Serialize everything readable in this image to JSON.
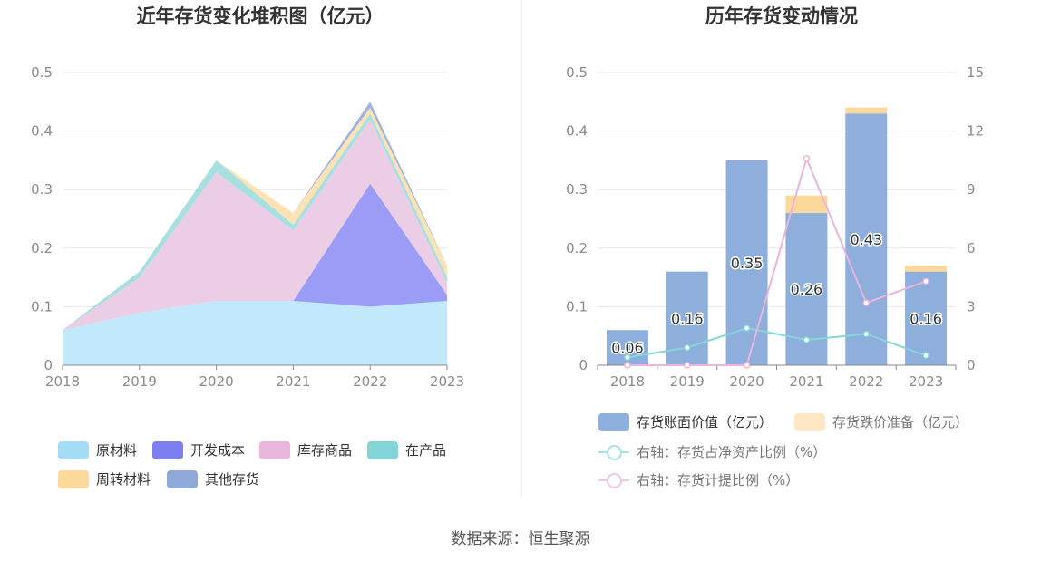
{
  "chart_data": [
    {
      "type": "area",
      "stacked": true,
      "title": "近年存货变化堆积图（亿元）",
      "categories": [
        "2018",
        "2019",
        "2020",
        "2021",
        "2022",
        "2023"
      ],
      "y_ticks": [
        "0",
        "0.1",
        "0.2",
        "0.3",
        "0.4",
        "0.5"
      ],
      "ylim": [
        0,
        0.5
      ],
      "grid": true,
      "legend_position": "bottom",
      "series": [
        {
          "name": "原材料",
          "color": "#c2e8fb",
          "values": [
            0.06,
            0.09,
            0.11,
            0.11,
            0.1,
            0.11
          ]
        },
        {
          "name": "开发成本",
          "color": "#9a9cf5",
          "values": [
            0,
            0,
            0,
            0,
            0.21,
            0.01
          ]
        },
        {
          "name": "库存商品",
          "color": "#eccde6",
          "values": [
            0,
            0.06,
            0.22,
            0.12,
            0.11,
            0.02
          ]
        },
        {
          "name": "在产品",
          "color": "#a6e0e0",
          "values": [
            0,
            0.01,
            0.02,
            0.01,
            0.01,
            0.01
          ]
        },
        {
          "name": "周转材料",
          "color": "#fde2b4",
          "values": [
            0,
            0,
            0,
            0.02,
            0.01,
            0.02
          ]
        },
        {
          "name": "其他存货",
          "color": "#9fb3dd",
          "values": [
            0,
            0,
            0,
            0,
            0.01,
            0
          ]
        }
      ],
      "legend_swatch_colors": [
        "#a5dcf8",
        "#7d7ef0",
        "#e9b7dc",
        "#82d4d6",
        "#fdd89b",
        "#8fa9d9"
      ]
    },
    {
      "type": "bar",
      "stacked": true,
      "title": "历年存货变动情况",
      "categories": [
        "2018",
        "2019",
        "2020",
        "2021",
        "2022",
        "2023"
      ],
      "y_ticks_left": [
        "0",
        "0.1",
        "0.2",
        "0.3",
        "0.4",
        "0.5"
      ],
      "y_ticks_right": [
        "0",
        "3",
        "6",
        "9",
        "12",
        "15"
      ],
      "ylim_left": [
        0,
        0.5
      ],
      "ylim_right": [
        0,
        15
      ],
      "grid": true,
      "legend_position": "bottom",
      "bar_series": [
        {
          "name": "存货账面价值（亿元）",
          "color": "#8eaedb",
          "values": [
            0.06,
            0.16,
            0.35,
            0.26,
            0.43,
            0.16
          ],
          "labels": [
            "0.06",
            "0.16",
            "0.35",
            "0.26",
            "0.43",
            "0.16"
          ]
        },
        {
          "name": "存货跌价准备（亿元）",
          "color": "#fdd89b",
          "values": [
            0,
            0,
            0,
            0.03,
            0.01,
            0.01
          ]
        }
      ],
      "line_series": [
        {
          "name": "右轴：存货占净资产比例（%）",
          "color": "#86d5d9",
          "axis": "right",
          "values": [
            0.4,
            0.9,
            1.9,
            1.3,
            1.6,
            0.5
          ]
        },
        {
          "name": "右轴：存货计提比例（%）",
          "color": "#eab4dc",
          "axis": "right",
          "values": [
            0,
            0,
            0,
            10.6,
            3.2,
            4.3
          ]
        }
      ],
      "legend_line_swatch_colors": [
        "#a8e1e4",
        "#efc6e6"
      ]
    }
  ],
  "footer": {
    "source": "数据来源：恒生聚源"
  }
}
